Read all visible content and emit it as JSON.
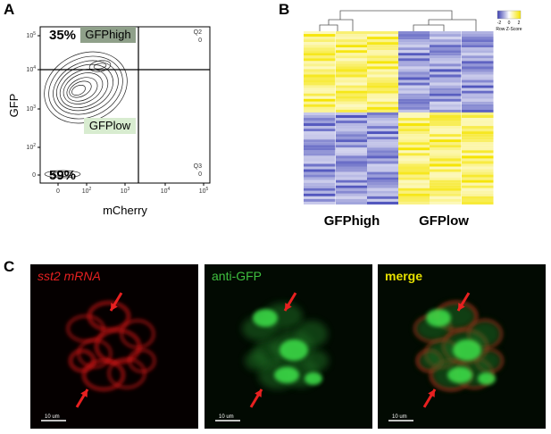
{
  "panel_a": {
    "label": "A",
    "y_axis_label": "GFP",
    "x_axis_label": "mCherry",
    "gate_high_percent": "35%",
    "gate_low_percent": "59%",
    "gate_high_label": "GFPhigh",
    "gate_low_label": "GFPlow",
    "q2": {
      "name": "Q2",
      "value": "0"
    },
    "q3": {
      "name": "Q3",
      "value": "0"
    },
    "y_ticks": [
      {
        "base": "10",
        "exponent": "5"
      },
      {
        "base": "10",
        "exponent": "4"
      },
      {
        "base": "10",
        "exponent": "3"
      },
      {
        "base": "10",
        "exponent": "2"
      },
      {
        "base": "0"
      }
    ],
    "x_ticks": [
      {
        "base": "0"
      },
      {
        "base": "10",
        "exponent": "2"
      },
      {
        "base": "10",
        "exponent": "3"
      },
      {
        "base": "10",
        "exponent": "4"
      },
      {
        "base": "10",
        "exponent": "5"
      }
    ]
  },
  "panel_b": {
    "label": "B",
    "columns": [
      "GFPhigh",
      "GFPlow"
    ],
    "color_key": {
      "ticks": [
        "-2",
        "0",
        "2"
      ],
      "title": "Row Z-Score"
    }
  },
  "panel_c": {
    "label": "C",
    "images": [
      {
        "title": "sst2 mRNA",
        "scale_bar": "10 um"
      },
      {
        "title": "anti-GFP",
        "scale_bar": "10 um"
      },
      {
        "title": "merge",
        "scale_bar": "10 um"
      }
    ]
  }
}
